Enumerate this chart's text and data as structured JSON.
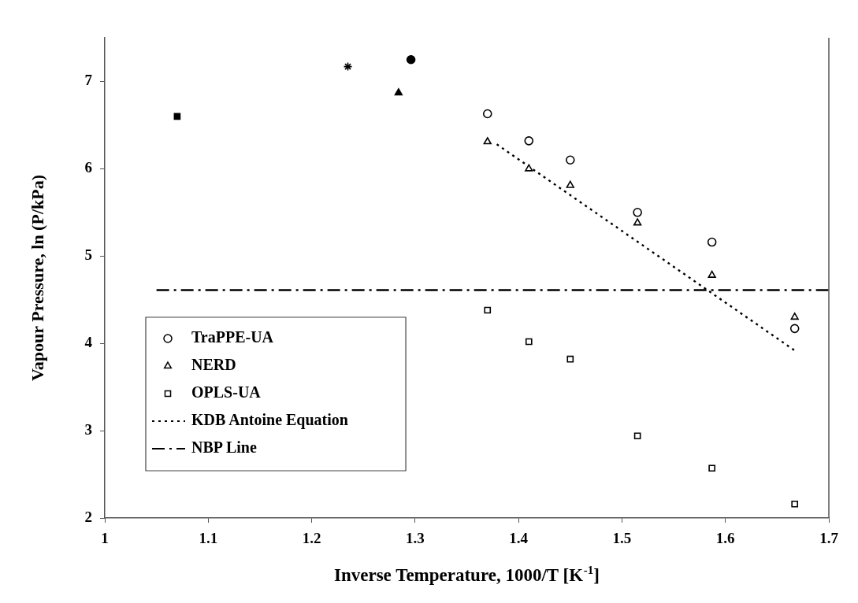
{
  "chart_data": {
    "type": "scatter",
    "xlabel": "Inverse Temperature, 1000/T [K$^{-1}$]",
    "ylabel": "Vapour Pressure, ln (P/kPa)",
    "xlim": [
      1,
      1.7
    ],
    "xticks": [
      1,
      1.1,
      1.2,
      1.3,
      1.4,
      1.5,
      1.6,
      1.7
    ],
    "ylim": [
      2,
      7.5
    ],
    "yticks": [
      2,
      3,
      4,
      5,
      6,
      7
    ],
    "grid": false,
    "legend": "bottom left",
    "series": [
      {
        "name": "TraPPE-UA",
        "color": "#000000",
        "marker": "circle",
        "x": [
          1.37,
          1.41,
          1.45,
          1.515,
          1.587,
          1.667
        ],
        "values": [
          6.63,
          6.32,
          6.1,
          5.5,
          5.16,
          4.17
        ]
      },
      {
        "name": "NERD",
        "color": "#000000",
        "marker": "triangle",
        "x": [
          1.37,
          1.41,
          1.45,
          1.515,
          1.587,
          1.667
        ],
        "values": [
          6.31,
          6.0,
          5.81,
          5.38,
          4.78,
          4.3
        ]
      },
      {
        "name": "OPLS-UA",
        "color": "#000000",
        "marker": "square",
        "x": [
          1.37,
          1.41,
          1.45,
          1.515,
          1.587,
          1.667
        ],
        "values": [
          4.38,
          4.02,
          3.82,
          2.94,
          2.57,
          2.16
        ]
      },
      {
        "name": "KDB Antoine Equation",
        "type": "line",
        "color": "#000000",
        "line_style": "dotted",
        "marker": "none",
        "x": [
          1.379,
          1.668
        ],
        "values": [
          6.28,
          3.91
        ]
      },
      {
        "name": "NBP Line",
        "type": "line",
        "color": "#000000",
        "line_style": "dashed",
        "marker": "none",
        "x": [
          1.05,
          1.7
        ],
        "values": [
          4.61,
          4.61
        ]
      },
      {
        "color": "#000000",
        "marker": "square",
        "x": [
          1.07
        ],
        "values": [
          6.6
        ]
      },
      {
        "color": "#000000",
        "marker": "cross",
        "x": [
          1.235
        ],
        "values": [
          7.17
        ]
      },
      {
        "color": "#000000",
        "marker": "triangle",
        "x": [
          1.284
        ],
        "values": [
          6.87
        ]
      },
      {
        "color": "#000000",
        "marker": "circle",
        "x": [
          1.296
        ],
        "values": [
          7.25
        ]
      }
    ]
  }
}
